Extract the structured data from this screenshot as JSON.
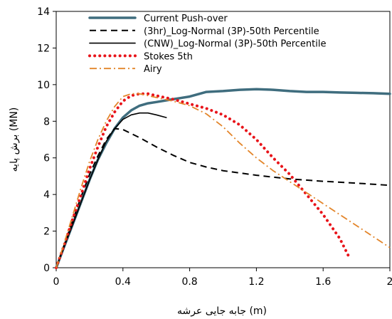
{
  "chart_data": {
    "type": "line",
    "title": "",
    "xlabel": "جابه جایی عرشه (m)",
    "ylabel": "برش پایه (MN)",
    "xlim": [
      0,
      2
    ],
    "ylim": [
      0,
      14
    ],
    "xticks": [
      0,
      0.4,
      0.8,
      1.2,
      1.6,
      2
    ],
    "xtick_labels": [
      "0",
      "0.4",
      "0.8",
      "1.2",
      "1.6",
      "2"
    ],
    "yticks": [
      0,
      2,
      4,
      6,
      8,
      10,
      12,
      14
    ],
    "ytick_labels": [
      "0",
      "2",
      "4",
      "6",
      "8",
      "10",
      "12",
      "14"
    ],
    "grid": false,
    "legend_position": "top-center",
    "series": [
      {
        "name": "Current Push-over",
        "color": "#3f6d7e",
        "style": "solid-thick",
        "points": [
          [
            0,
            0
          ],
          [
            0.05,
            1.2
          ],
          [
            0.1,
            2.4
          ],
          [
            0.15,
            3.6
          ],
          [
            0.2,
            4.8
          ],
          [
            0.25,
            5.9
          ],
          [
            0.3,
            6.8
          ],
          [
            0.35,
            7.6
          ],
          [
            0.4,
            8.2
          ],
          [
            0.45,
            8.6
          ],
          [
            0.5,
            8.85
          ],
          [
            0.55,
            8.98
          ],
          [
            0.6,
            9.05
          ],
          [
            0.7,
            9.2
          ],
          [
            0.8,
            9.35
          ],
          [
            0.9,
            9.6
          ],
          [
            1.0,
            9.65
          ],
          [
            1.1,
            9.72
          ],
          [
            1.2,
            9.75
          ],
          [
            1.3,
            9.72
          ],
          [
            1.4,
            9.65
          ],
          [
            1.5,
            9.6
          ],
          [
            1.6,
            9.6
          ],
          [
            1.7,
            9.57
          ],
          [
            1.8,
            9.55
          ],
          [
            1.9,
            9.53
          ],
          [
            2.0,
            9.5
          ]
        ]
      },
      {
        "name": "(3hr)_Log-Normal (3P)-50th Percentile",
        "color": "#000000",
        "style": "dashed",
        "points": [
          [
            0,
            0
          ],
          [
            0.05,
            1.3
          ],
          [
            0.1,
            2.6
          ],
          [
            0.15,
            3.9
          ],
          [
            0.2,
            5.1
          ],
          [
            0.25,
            6.1
          ],
          [
            0.3,
            7.0
          ],
          [
            0.35,
            7.6
          ],
          [
            0.4,
            7.55
          ],
          [
            0.5,
            7.1
          ],
          [
            0.6,
            6.6
          ],
          [
            0.7,
            6.15
          ],
          [
            0.8,
            5.75
          ],
          [
            0.9,
            5.5
          ],
          [
            1.0,
            5.3
          ],
          [
            1.2,
            5.05
          ],
          [
            1.4,
            4.85
          ],
          [
            1.6,
            4.72
          ],
          [
            1.8,
            4.62
          ],
          [
            2.0,
            4.5
          ]
        ]
      },
      {
        "name": "(CNW)_Log-Normal (3P)-50th Percentile",
        "color": "#000000",
        "style": "solid-thin",
        "points": [
          [
            0,
            0
          ],
          [
            0.05,
            1.2
          ],
          [
            0.1,
            2.4
          ],
          [
            0.15,
            3.6
          ],
          [
            0.2,
            4.8
          ],
          [
            0.25,
            5.9
          ],
          [
            0.3,
            6.9
          ],
          [
            0.35,
            7.6
          ],
          [
            0.4,
            8.1
          ],
          [
            0.45,
            8.35
          ],
          [
            0.5,
            8.45
          ],
          [
            0.55,
            8.45
          ],
          [
            0.6,
            8.35
          ],
          [
            0.66,
            8.2
          ]
        ]
      },
      {
        "name": "Stokes 5th",
        "color": "#e8141a",
        "style": "dotted",
        "points": [
          [
            0,
            0
          ],
          [
            0.05,
            1.3
          ],
          [
            0.1,
            2.7
          ],
          [
            0.15,
            4.0
          ],
          [
            0.2,
            5.4
          ],
          [
            0.25,
            6.6
          ],
          [
            0.3,
            7.7
          ],
          [
            0.35,
            8.5
          ],
          [
            0.4,
            9.1
          ],
          [
            0.45,
            9.4
          ],
          [
            0.5,
            9.5
          ],
          [
            0.55,
            9.5
          ],
          [
            0.6,
            9.4
          ],
          [
            0.7,
            9.2
          ],
          [
            0.8,
            8.95
          ],
          [
            0.9,
            8.7
          ],
          [
            1.0,
            8.35
          ],
          [
            1.1,
            7.8
          ],
          [
            1.2,
            7.0
          ],
          [
            1.3,
            6.0
          ],
          [
            1.4,
            5.1
          ],
          [
            1.5,
            4.0
          ],
          [
            1.6,
            2.9
          ],
          [
            1.7,
            1.6
          ],
          [
            1.76,
            0.5
          ]
        ]
      },
      {
        "name": "Airy",
        "color": "#e3852a",
        "style": "dashdot",
        "points": [
          [
            0,
            0
          ],
          [
            0.05,
            1.4
          ],
          [
            0.1,
            2.9
          ],
          [
            0.15,
            4.4
          ],
          [
            0.2,
            5.8
          ],
          [
            0.25,
            7.0
          ],
          [
            0.3,
            8.0
          ],
          [
            0.35,
            8.8
          ],
          [
            0.4,
            9.35
          ],
          [
            0.45,
            9.5
          ],
          [
            0.5,
            9.5
          ],
          [
            0.6,
            9.3
          ],
          [
            0.7,
            9.1
          ],
          [
            0.8,
            8.85
          ],
          [
            0.9,
            8.4
          ],
          [
            1.0,
            7.7
          ],
          [
            1.1,
            6.8
          ],
          [
            1.2,
            6.0
          ],
          [
            1.3,
            5.3
          ],
          [
            1.4,
            4.7
          ],
          [
            1.5,
            4.1
          ],
          [
            1.6,
            3.5
          ],
          [
            1.7,
            2.9
          ],
          [
            1.8,
            2.3
          ],
          [
            1.9,
            1.7
          ],
          [
            2.0,
            1.1
          ]
        ]
      }
    ]
  }
}
